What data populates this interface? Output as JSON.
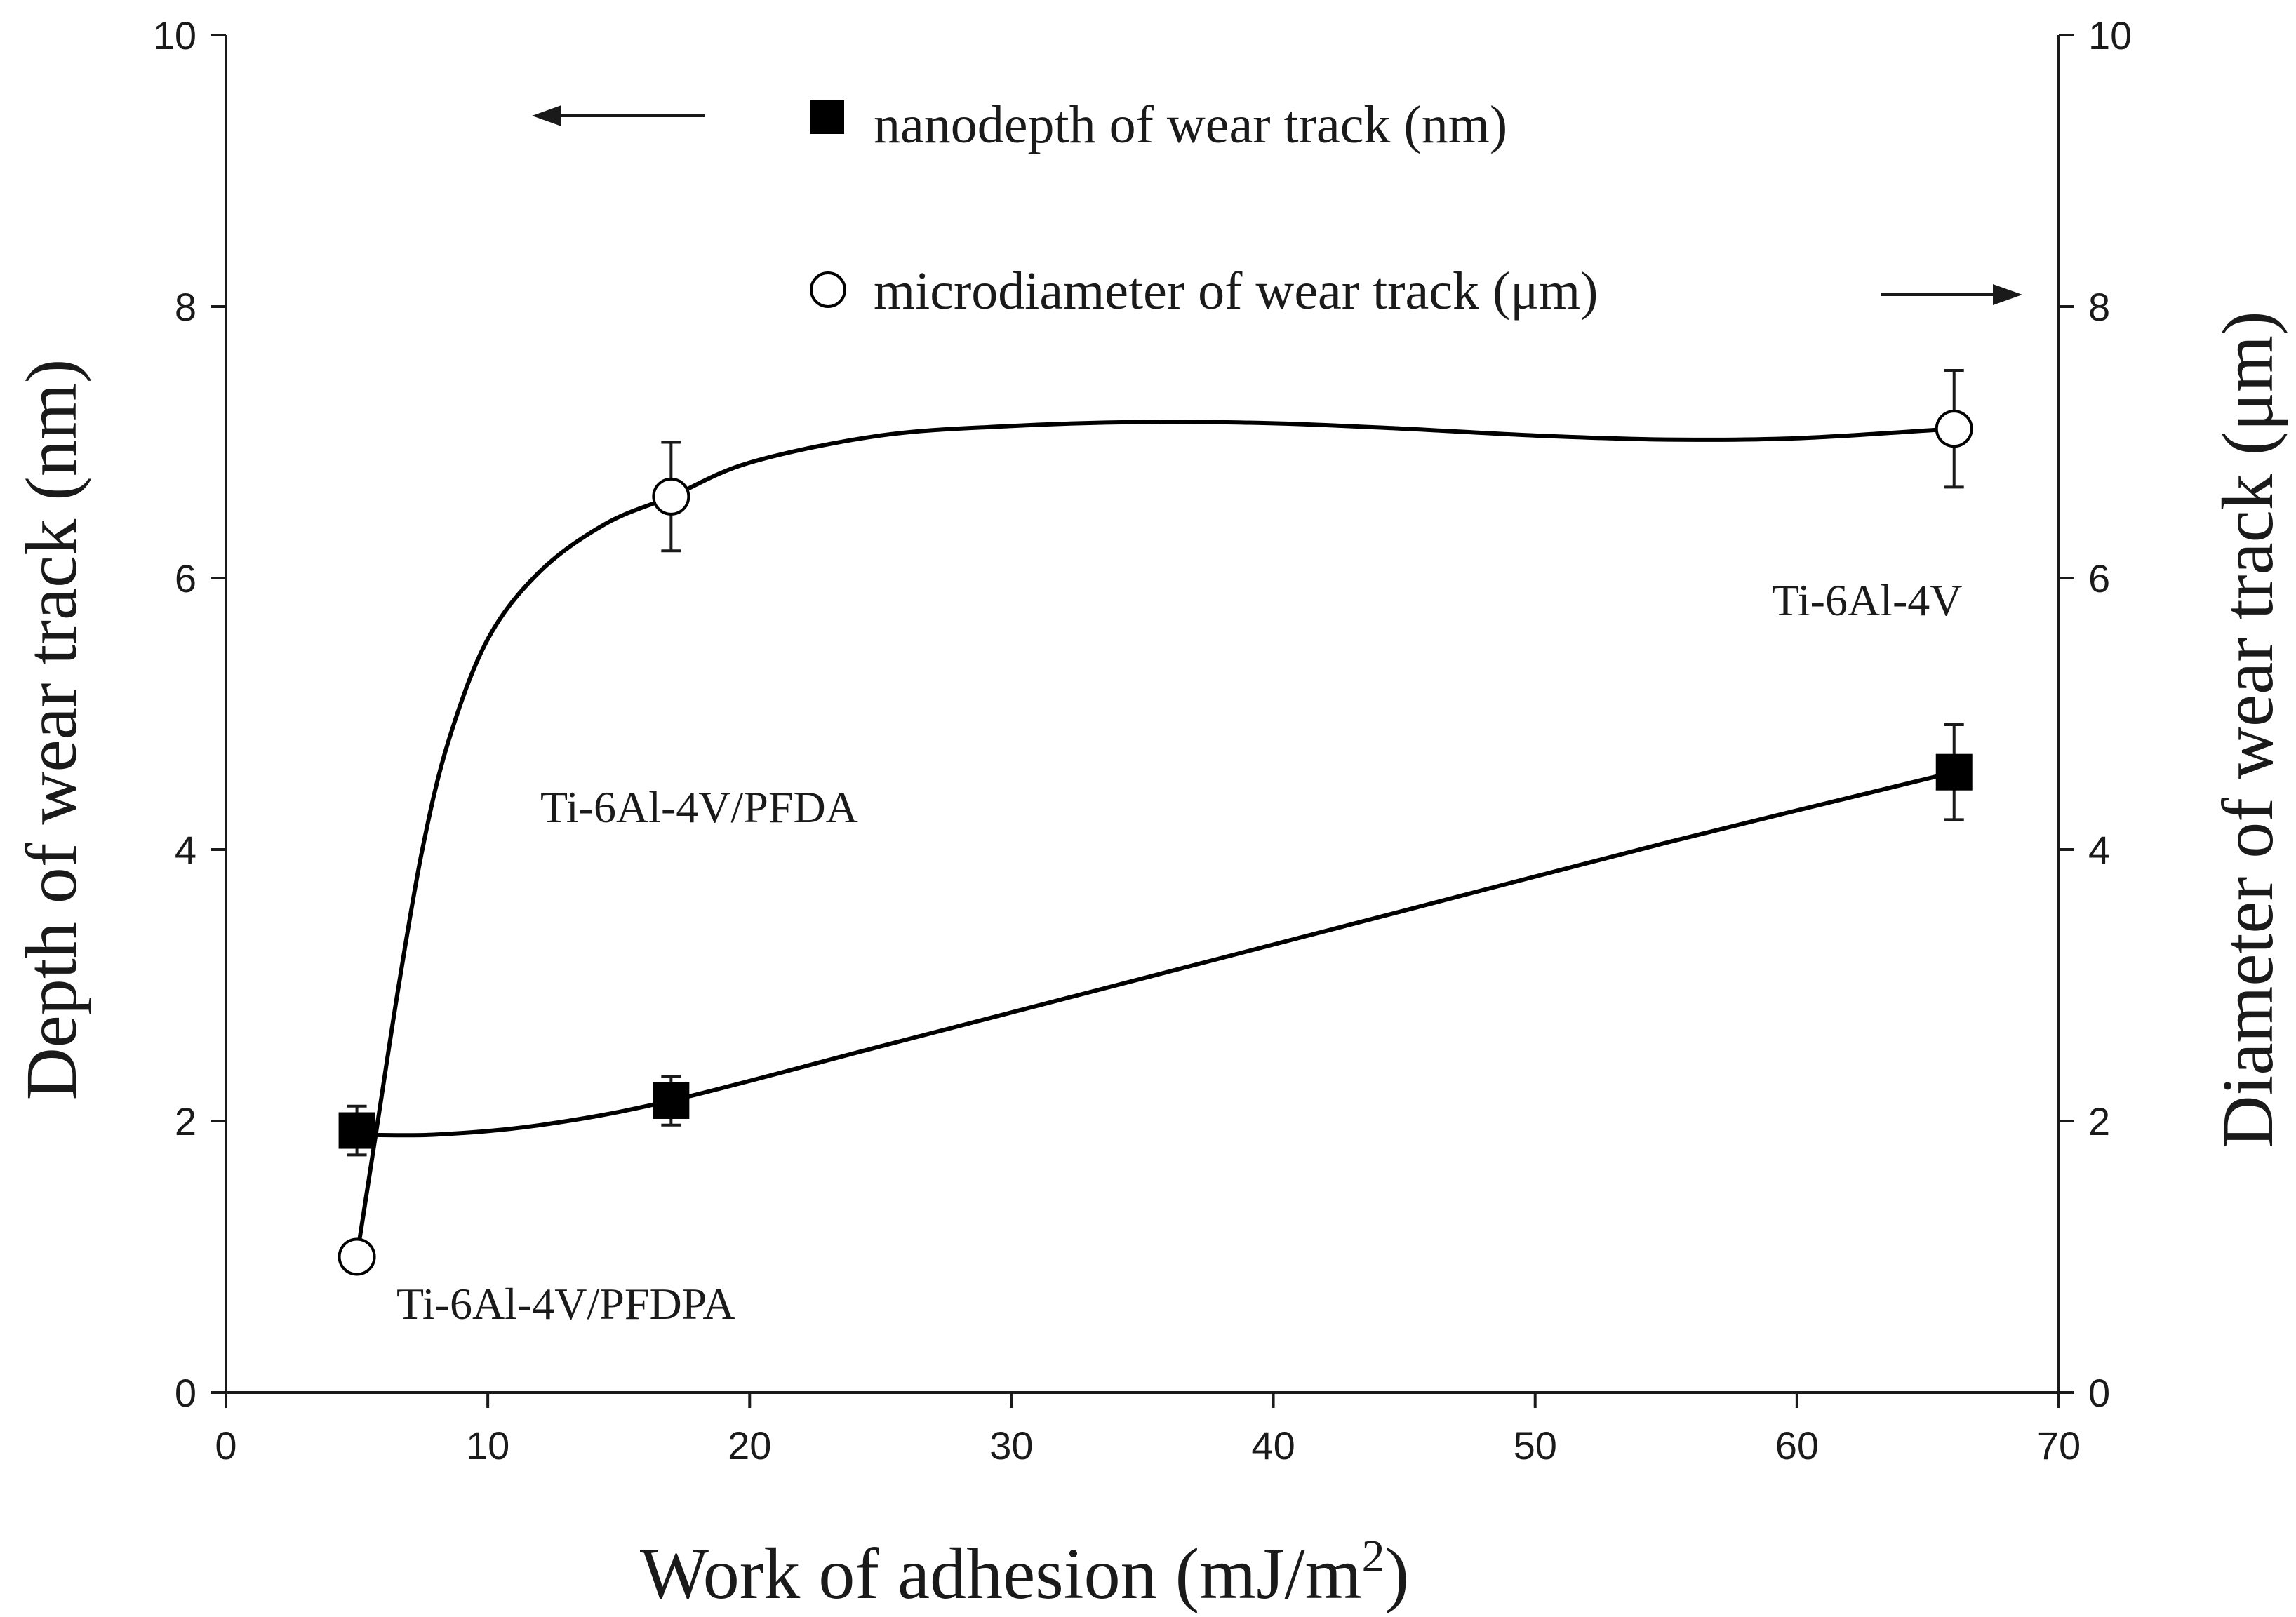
{
  "chart_data": {
    "type": "scatter",
    "xlabel": "Work of adhesion (mJ/m",
    "xlabel_sup": "2",
    "xlabel_suffix": ")",
    "ylabel_left": "Depth of wear track (nm)",
    "ylabel_right": "Diameter of wear track (μm)",
    "xlim": [
      0,
      70
    ],
    "ylim_left": [
      0,
      10
    ],
    "ylim_right": [
      0,
      10
    ],
    "x_ticks": [
      "0",
      "10",
      "20",
      "30",
      "40",
      "50",
      "60",
      "70"
    ],
    "y_ticks_left": [
      "0",
      "2",
      "4",
      "6",
      "8",
      "10"
    ],
    "y_ticks_right": [
      "0",
      "2",
      "4",
      "6",
      "8",
      "10"
    ],
    "x_tick_values": [
      0,
      10,
      20,
      30,
      40,
      50,
      60,
      70
    ],
    "y_tick_values": [
      0,
      2,
      4,
      6,
      8,
      10
    ],
    "series": [
      {
        "name": "nanodepth of wear track (nm)",
        "marker": "filled-square",
        "axis": "left",
        "color": "#000000",
        "x": [
          5,
          17,
          66
        ],
        "y": [
          1.93,
          2.15,
          4.57
        ],
        "err": [
          0.18,
          0.18,
          0.35
        ],
        "trend_x": [
          5,
          8,
          12,
          17,
          25,
          35,
          45,
          55,
          66
        ],
        "trend_y": [
          1.9,
          1.9,
          1.97,
          2.15,
          2.55,
          3.05,
          3.55,
          4.05,
          4.57
        ]
      },
      {
        "name": "microdiameter of wear track (μm)",
        "marker": "open-circle",
        "axis": "right",
        "color": "#000000",
        "x": [
          5,
          17,
          66
        ],
        "y": [
          1.0,
          6.6,
          7.1
        ],
        "err": [
          0.0,
          0.4,
          0.43
        ],
        "trend_x": [
          5,
          5.8,
          6.6,
          7.5,
          8.5,
          10,
          12,
          14.5,
          17,
          20,
          25,
          30,
          35,
          40,
          45,
          50,
          55,
          60,
          66
        ],
        "trend_y": [
          1.0,
          2.0,
          3.0,
          4.0,
          4.8,
          5.55,
          6.05,
          6.4,
          6.6,
          6.85,
          7.05,
          7.12,
          7.15,
          7.14,
          7.1,
          7.05,
          7.02,
          7.03,
          7.1
        ]
      }
    ],
    "legend": [
      {
        "label": "nanodepth of wear track (nm)",
        "arrow": "left",
        "placement": "top-left"
      },
      {
        "label": "microdiameter of wear track (μm)",
        "arrow": "right",
        "placement": "top-right"
      }
    ],
    "annotations": [
      {
        "text": "Ti-6Al-4V/PFDPA",
        "x": 5,
        "y": 0.6
      },
      {
        "text": "Ti-6Al-4V/PFDA",
        "x": 12,
        "y": 4.2
      },
      {
        "text": "Ti-6Al-4V",
        "x": 60,
        "y": 5.9
      }
    ]
  }
}
